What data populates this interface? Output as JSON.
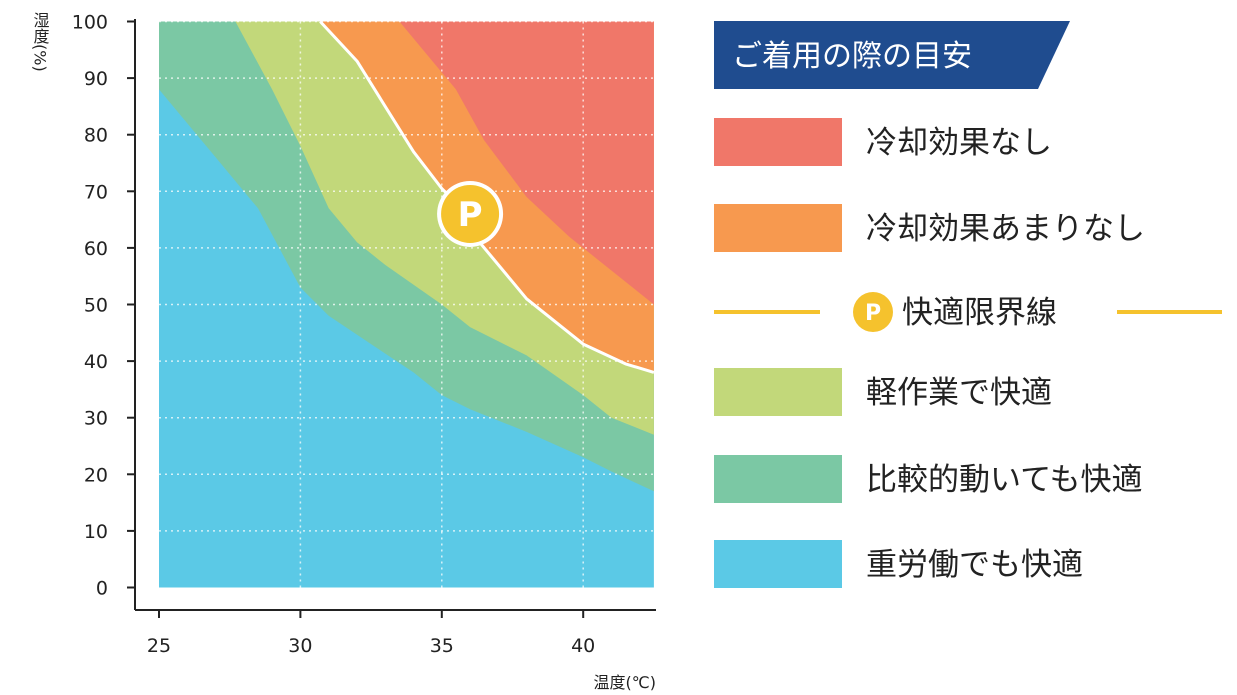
{
  "chart_data": {
    "type": "area",
    "x_label": "温度(℃)",
    "y_label": "湿度(%)",
    "xlim": [
      24.2,
      42.5
    ],
    "ylim": [
      0,
      100
    ],
    "x_ticks": [
      25,
      30,
      35,
      40
    ],
    "y_ticks": [
      0,
      10,
      20,
      30,
      40,
      50,
      60,
      70,
      80,
      90,
      100
    ],
    "grid": true,
    "x_range_filled": [
      25,
      42.5
    ],
    "zones": [
      {
        "name": "冷却効果なし",
        "color": "#f07769",
        "lower_boundary": [
          [
            33.5,
            100
          ],
          [
            35.5,
            88
          ],
          [
            36.5,
            79
          ],
          [
            38,
            69
          ],
          [
            39.5,
            62
          ],
          [
            40.5,
            58
          ],
          [
            42.5,
            50
          ]
        ]
      },
      {
        "name": "冷却効果あまりなし",
        "color": "#f7994f",
        "lower_boundary": [
          [
            30.7,
            100
          ],
          [
            32,
            93
          ],
          [
            33,
            85
          ],
          [
            34,
            77
          ],
          [
            35,
            70.5
          ],
          [
            35.5,
            68
          ],
          [
            36,
            63
          ],
          [
            38,
            51
          ],
          [
            40,
            43
          ],
          [
            41.5,
            39.5
          ],
          [
            42.5,
            38
          ]
        ]
      },
      {
        "name": "軽作業で快適",
        "color": "#c2d87a",
        "lower_boundary": [
          [
            27.7,
            100
          ],
          [
            29,
            88
          ],
          [
            30,
            78
          ],
          [
            31,
            67
          ],
          [
            32,
            61
          ],
          [
            33,
            57
          ],
          [
            35,
            50
          ],
          [
            36,
            46
          ],
          [
            38,
            41
          ],
          [
            40,
            34
          ],
          [
            41,
            30
          ],
          [
            42.5,
            27
          ]
        ]
      },
      {
        "name": "比較的動いても快適",
        "color": "#7bc8a4",
        "lower_boundary": [
          [
            25,
            88
          ],
          [
            27,
            76
          ],
          [
            28.5,
            67
          ],
          [
            30,
            53
          ],
          [
            31,
            48
          ],
          [
            32.5,
            43
          ],
          [
            34,
            38
          ],
          [
            35,
            34
          ],
          [
            36,
            31.5
          ],
          [
            38,
            27.5
          ],
          [
            40,
            23
          ],
          [
            41,
            20.5
          ],
          [
            42.5,
            17
          ]
        ]
      },
      {
        "name": "重労働でも快適",
        "color": "#5bc9e6",
        "lower_boundary": [
          [
            25,
            0
          ],
          [
            42.5,
            0
          ]
        ]
      }
    ],
    "comfort_limit_line": {
      "name": "快適限界線",
      "marker_label": "P",
      "marker_color": "#f5c22d",
      "marker_at": [
        36,
        66
      ]
    },
    "legend_title": "ご着用の際の目安",
    "legend_title_color": "#1f4c8f"
  }
}
